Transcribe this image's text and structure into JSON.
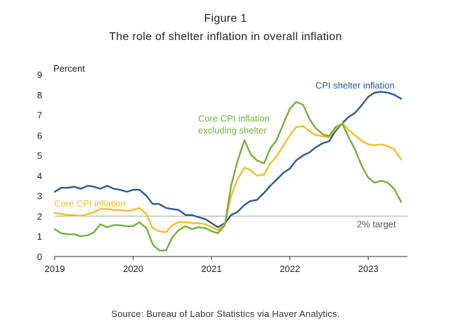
{
  "figure": {
    "label": "Figure 1",
    "title": "The role of shelter inflation in overall inflation",
    "source": "Source: Bureau of Labor Statistics via Haver Analytics."
  },
  "colors": {
    "shelter": "#2a5a8e",
    "core": "#f6bd26",
    "core_ex_shelter": "#77ad3a",
    "target": "#a6a6a6"
  },
  "chart_data": {
    "type": "line",
    "ylabel": "Percent",
    "xlabel": "",
    "ylim": [
      0,
      9
    ],
    "yticks": [
      0,
      1,
      2,
      3,
      4,
      5,
      6,
      7,
      8,
      9
    ],
    "xlim": [
      2019.0,
      2023.5
    ],
    "xticks": [
      "2019",
      "2020",
      "2021",
      "2022",
      "2023"
    ],
    "grid": false,
    "reference_line": {
      "value": 2,
      "label": "2% target"
    },
    "series": [
      {
        "key": "shelter",
        "name": "CPI shelter inflation",
        "x": [
          2019.0,
          2019.08,
          2019.17,
          2019.25,
          2019.33,
          2019.42,
          2019.5,
          2019.58,
          2019.67,
          2019.75,
          2019.83,
          2019.92,
          2020.0,
          2020.08,
          2020.17,
          2020.25,
          2020.33,
          2020.42,
          2020.5,
          2020.58,
          2020.67,
          2020.75,
          2020.83,
          2020.92,
          2021.0,
          2021.08,
          2021.17,
          2021.25,
          2021.33,
          2021.42,
          2021.5,
          2021.58,
          2021.67,
          2021.75,
          2021.83,
          2021.92,
          2022.0,
          2022.08,
          2022.17,
          2022.25,
          2022.33,
          2022.42,
          2022.5,
          2022.58,
          2022.67,
          2022.75,
          2022.83,
          2022.92,
          2023.0,
          2023.08,
          2023.17,
          2023.25,
          2023.33,
          2023.42
        ],
        "values": [
          3.2,
          3.4,
          3.4,
          3.45,
          3.35,
          3.5,
          3.45,
          3.35,
          3.5,
          3.35,
          3.3,
          3.2,
          3.3,
          3.3,
          3.0,
          2.6,
          2.6,
          2.4,
          2.35,
          2.3,
          2.05,
          2.05,
          1.95,
          1.85,
          1.65,
          1.45,
          1.65,
          2.05,
          2.2,
          2.55,
          2.75,
          2.8,
          3.15,
          3.5,
          3.8,
          4.15,
          4.35,
          4.75,
          5.0,
          5.15,
          5.4,
          5.6,
          5.7,
          6.2,
          6.6,
          6.9,
          7.1,
          7.5,
          7.9,
          8.1,
          8.15,
          8.1,
          8.0,
          7.8
        ]
      },
      {
        "key": "core",
        "name": "Core CPI inflation",
        "x": [
          2019.0,
          2019.08,
          2019.17,
          2019.25,
          2019.33,
          2019.42,
          2019.5,
          2019.58,
          2019.67,
          2019.75,
          2019.83,
          2019.92,
          2020.0,
          2020.08,
          2020.17,
          2020.25,
          2020.33,
          2020.42,
          2020.5,
          2020.58,
          2020.67,
          2020.75,
          2020.83,
          2020.92,
          2021.0,
          2021.08,
          2021.17,
          2021.25,
          2021.33,
          2021.42,
          2021.5,
          2021.58,
          2021.67,
          2021.75,
          2021.83,
          2021.92,
          2022.0,
          2022.08,
          2022.17,
          2022.25,
          2022.33,
          2022.42,
          2022.5,
          2022.58,
          2022.67,
          2022.75,
          2022.83,
          2022.92,
          2023.0,
          2023.08,
          2023.17,
          2023.25,
          2023.33,
          2023.42
        ],
        "values": [
          2.15,
          2.1,
          2.05,
          2.05,
          2.0,
          2.1,
          2.2,
          2.35,
          2.35,
          2.3,
          2.3,
          2.25,
          2.3,
          2.4,
          2.1,
          1.4,
          1.25,
          1.2,
          1.55,
          1.7,
          1.7,
          1.65,
          1.65,
          1.6,
          1.45,
          1.3,
          1.6,
          3.0,
          3.8,
          4.4,
          4.25,
          4.0,
          4.05,
          4.6,
          4.95,
          5.5,
          6.0,
          6.4,
          6.45,
          6.2,
          6.0,
          5.95,
          5.9,
          6.3,
          6.6,
          6.25,
          6.0,
          5.7,
          5.55,
          5.5,
          5.55,
          5.45,
          5.3,
          4.8
        ]
      },
      {
        "key": "core_ex_shelter",
        "name": "Core CPI inflation excluding shelter",
        "x": [
          2019.0,
          2019.08,
          2019.17,
          2019.25,
          2019.33,
          2019.42,
          2019.5,
          2019.58,
          2019.67,
          2019.75,
          2019.83,
          2019.92,
          2020.0,
          2020.08,
          2020.17,
          2020.25,
          2020.33,
          2020.42,
          2020.5,
          2020.58,
          2020.67,
          2020.75,
          2020.83,
          2020.92,
          2021.0,
          2021.08,
          2021.17,
          2021.25,
          2021.33,
          2021.42,
          2021.5,
          2021.58,
          2021.67,
          2021.75,
          2021.83,
          2021.92,
          2022.0,
          2022.08,
          2022.17,
          2022.25,
          2022.33,
          2022.42,
          2022.5,
          2022.58,
          2022.67,
          2022.75,
          2022.83,
          2022.92,
          2023.0,
          2023.08,
          2023.17,
          2023.25,
          2023.33,
          2023.42
        ],
        "values": [
          1.35,
          1.15,
          1.1,
          1.1,
          1.0,
          1.05,
          1.2,
          1.6,
          1.45,
          1.55,
          1.55,
          1.5,
          1.5,
          1.7,
          1.4,
          0.6,
          0.3,
          0.3,
          0.95,
          1.3,
          1.5,
          1.35,
          1.45,
          1.4,
          1.25,
          1.15,
          1.55,
          3.5,
          4.7,
          5.75,
          5.05,
          4.75,
          4.6,
          5.35,
          5.75,
          6.6,
          7.3,
          7.65,
          7.5,
          6.8,
          6.35,
          6.05,
          5.95,
          6.4,
          6.55,
          5.9,
          5.3,
          4.45,
          3.9,
          3.65,
          3.75,
          3.65,
          3.35,
          2.7
        ]
      }
    ],
    "annotations": {
      "shelter": "CPI shelter inflation",
      "core": "Core CPI inflation",
      "core_ex_shelter_line1": "Core CPI inflation",
      "core_ex_shelter_line2": "excluding shelter"
    }
  }
}
